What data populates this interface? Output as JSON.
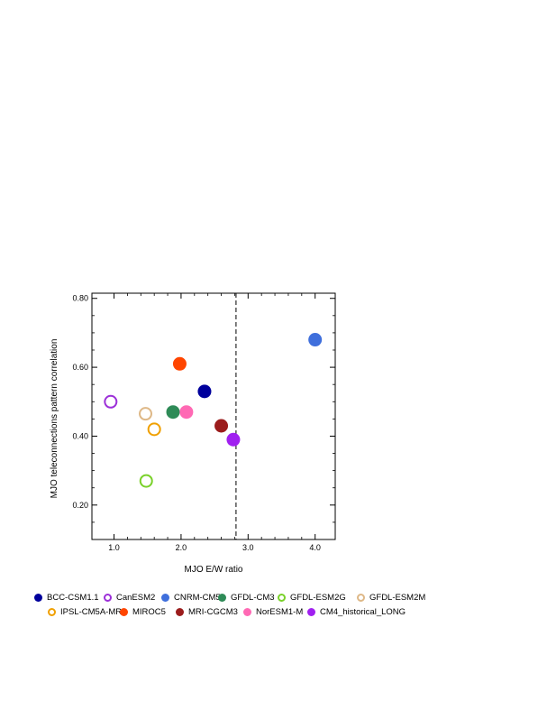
{
  "chart_data": {
    "type": "scatter",
    "title": "",
    "xlabel": "MJO E/W ratio",
    "ylabel": "MJO teleconnections pattern correlation",
    "xlim": [
      0.67,
      4.3
    ],
    "ylim": [
      0.1,
      0.815
    ],
    "x_ticks": [
      "1.0",
      "2.0",
      "3.0",
      "4.0"
    ],
    "x_tick_values": [
      1.0,
      2.0,
      3.0,
      4.0
    ],
    "y_ticks": [
      "0.20",
      "0.40",
      "0.60",
      "0.80"
    ],
    "y_tick_values": [
      0.2,
      0.4,
      0.6,
      0.8
    ],
    "reference_line": {
      "axis": "x",
      "value": 2.82,
      "style": "dashed"
    },
    "grid": false,
    "legend_position": "bottom",
    "series": [
      {
        "name": "BCC-CSM1.1",
        "x": 2.35,
        "y": 0.53,
        "color": "#00009c",
        "filled": true
      },
      {
        "name": "CanESM2",
        "x": 0.95,
        "y": 0.5,
        "color": "#9c2fd8",
        "filled": false
      },
      {
        "name": "CNRM-CM5",
        "x": 4.0,
        "y": 0.68,
        "color": "#3f6fdc",
        "filled": true
      },
      {
        "name": "GFDL-CM3",
        "x": 1.88,
        "y": 0.47,
        "color": "#2e8b57",
        "filled": true
      },
      {
        "name": "GFDL-ESM2G",
        "x": 1.48,
        "y": 0.27,
        "color": "#7ad12a",
        "filled": false
      },
      {
        "name": "GFDL-ESM2M",
        "x": 1.47,
        "y": 0.465,
        "color": "#deb887",
        "filled": false
      },
      {
        "name": "IPSL-CM5A-MR",
        "x": 1.6,
        "y": 0.42,
        "color": "#f0a000",
        "filled": false
      },
      {
        "name": "MIROC5",
        "x": 1.98,
        "y": 0.61,
        "color": "#ff4500",
        "filled": true
      },
      {
        "name": "MRI-CGCM3",
        "x": 2.6,
        "y": 0.43,
        "color": "#9b1c1c",
        "filled": true
      },
      {
        "name": "NorESM1-M",
        "x": 2.08,
        "y": 0.47,
        "color": "#ff69b4",
        "filled": true
      },
      {
        "name": "CM4_historical_LONG",
        "x": 2.78,
        "y": 0.39,
        "color": "#a020f0",
        "filled": true
      }
    ]
  }
}
